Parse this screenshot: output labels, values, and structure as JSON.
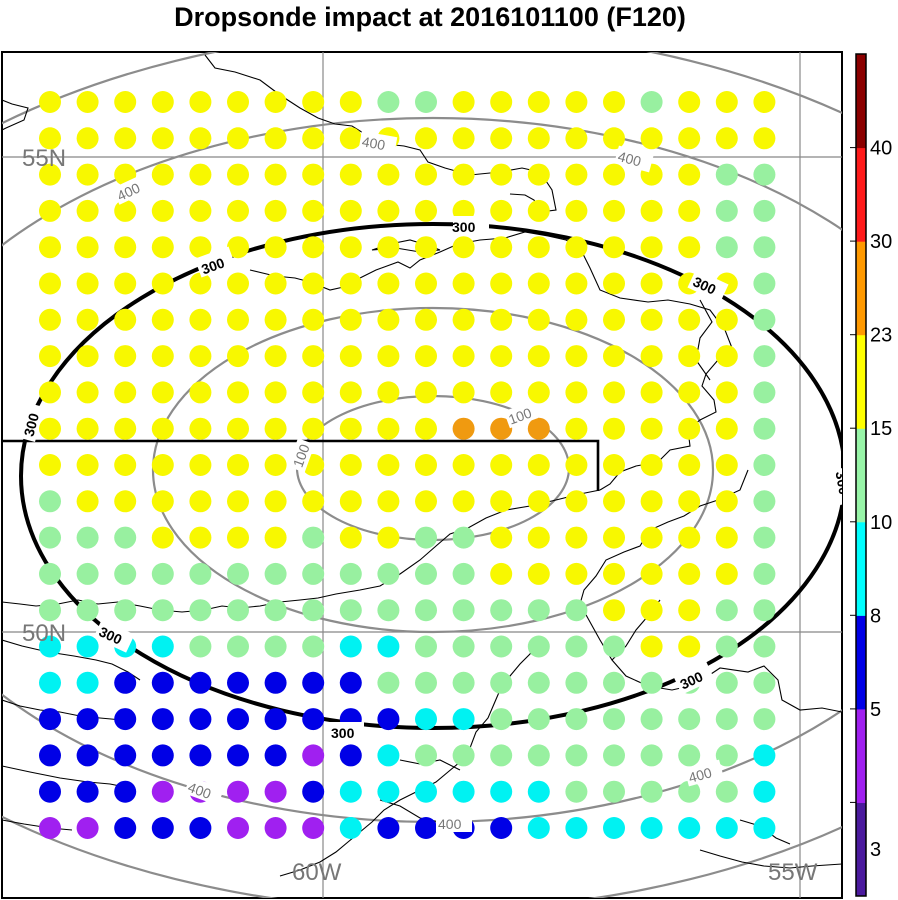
{
  "title": "Dropsonde impact at 2016101100 (F120)",
  "grid_labels": {
    "lat_north": "55N",
    "lat_south": "50N",
    "lon_west": "60W",
    "lon_east": "55W"
  },
  "contour_labels": {
    "inner": "100",
    "outer": "400",
    "ring_300": "300"
  },
  "colorbar": {
    "labels": [
      "3",
      "5",
      "8",
      "10",
      "15",
      "23",
      "30",
      "40"
    ],
    "colors": [
      "#4b1a9e",
      "#a020f0",
      "#0000e6",
      "#00ffff",
      "#98f5a8",
      "#ffff00",
      "#ff9900",
      "#ff1a1a",
      "#8b0000"
    ]
  },
  "dot_colors": {
    "Y": "#f8f800",
    "G": "#98f0a0",
    "C": "#00f2f2",
    "B": "#0000e6",
    "P": "#a020f0",
    "O": "#f09a10"
  },
  "dot_rows": [
    "YYYYYYYYYGGYYYYYGYYY",
    "YYYYYYYYYYYYYYYYYYYY",
    "YYYYYYYYYYYYYYYYYYGG",
    "YYYYYYYYYYYYYYYYYYGG",
    "YYYYYYYYYYYYYYYYYYGG",
    "YYYYYYYYYYYYYYYYYYYG",
    "YYYYYYYYYYYYYYYYYYYG",
    "YYYYYYYYYYYYYYYYYYYG",
    "YYYYYYYYYYYYYYYYYYYG",
    "YYYYYYYYYYYOOOYYYYYG",
    "YYYYYYYYYYYYYYYYYYYG",
    "GYYYYYYYYYYYYYYYYYYG",
    "GGGYYYYGYYGGYYYYYYYG",
    "GGGGGGGGGGGGYYYYYYYG",
    "GGGGGGGGGGGGGGGYYYGG",
    "CCCCGGGGCCGGGGGGYYGG",
    "CCBBBBBBBGGGGGGGGGGG",
    "BBBBBBBBBBCCGGGGGGGG",
    "BBBBBBBPBCGGGGGGGGGC",
    "BBBPPPPBCCCCCCGGGGGC",
    "PPBBBPPPCBBBBCCCCCCC"
  ]
}
